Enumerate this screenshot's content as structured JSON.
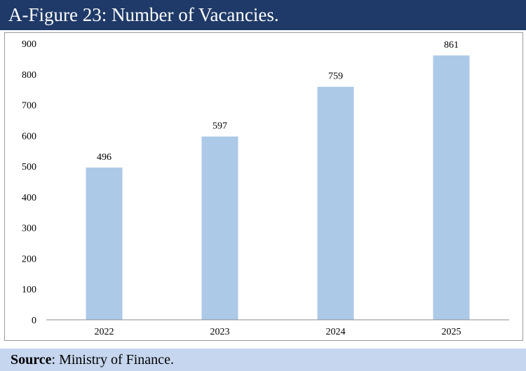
{
  "figure": {
    "title": "A-Figure 23: Number of Vacancies."
  },
  "source": {
    "label": "Source",
    "text": ": Ministry of Finance."
  },
  "colors": {
    "title_bg": "#1f3a68",
    "bar": "#adc9e8",
    "source_bg": "#c6d6ee"
  },
  "chart_data": {
    "type": "bar",
    "categories": [
      "2022",
      "2023",
      "2024",
      "2025"
    ],
    "values": [
      496,
      597,
      759,
      861
    ],
    "data_labels": [
      "496",
      "597",
      "759",
      "861"
    ],
    "title": "",
    "xlabel": "",
    "ylabel": "",
    "ylim": [
      0,
      900
    ],
    "yticks": [
      0,
      100,
      200,
      300,
      400,
      500,
      600,
      700,
      800,
      900
    ],
    "ytick_labels": [
      "0",
      "100",
      "200",
      "300",
      "400",
      "500",
      "600",
      "700",
      "800",
      "900"
    ],
    "grid": false,
    "legend": "none"
  }
}
